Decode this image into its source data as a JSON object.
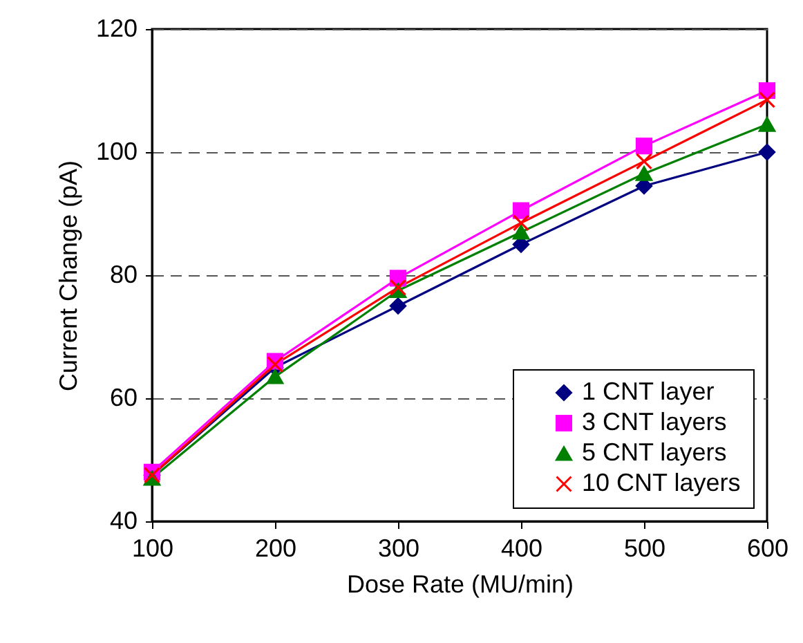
{
  "chart_data": {
    "type": "line",
    "xlabel": "Dose Rate (MU/min)",
    "ylabel": "Current Change (pA)",
    "x": [
      100,
      200,
      300,
      400,
      500,
      600
    ],
    "series": [
      {
        "name": "1 CNT layer",
        "color": "#000080",
        "marker": "diamond",
        "values": [
          47.5,
          65,
          75,
          85,
          94.5,
          100
        ]
      },
      {
        "name": "3 CNT layers",
        "color": "#ff00ff",
        "marker": "square",
        "values": [
          48,
          66,
          79.5,
          90.5,
          101,
          110
        ]
      },
      {
        "name": "5 CNT layers",
        "color": "#008000",
        "marker": "triangle",
        "values": [
          47,
          63.5,
          77.5,
          87,
          96.5,
          104.5
        ]
      },
      {
        "name": "10 CNT layers",
        "color": "#ff0000",
        "marker": "cross",
        "values": [
          47.5,
          65.5,
          78,
          88.5,
          98.5,
          108.5
        ]
      }
    ],
    "xlim": [
      100,
      600
    ],
    "xticks": [
      100,
      200,
      300,
      400,
      500,
      600
    ],
    "ylim": [
      40,
      120
    ],
    "yticks": [
      40,
      60,
      80,
      100,
      120
    ],
    "grid": "y",
    "legend": "bottom right",
    "line_style": "solid"
  }
}
